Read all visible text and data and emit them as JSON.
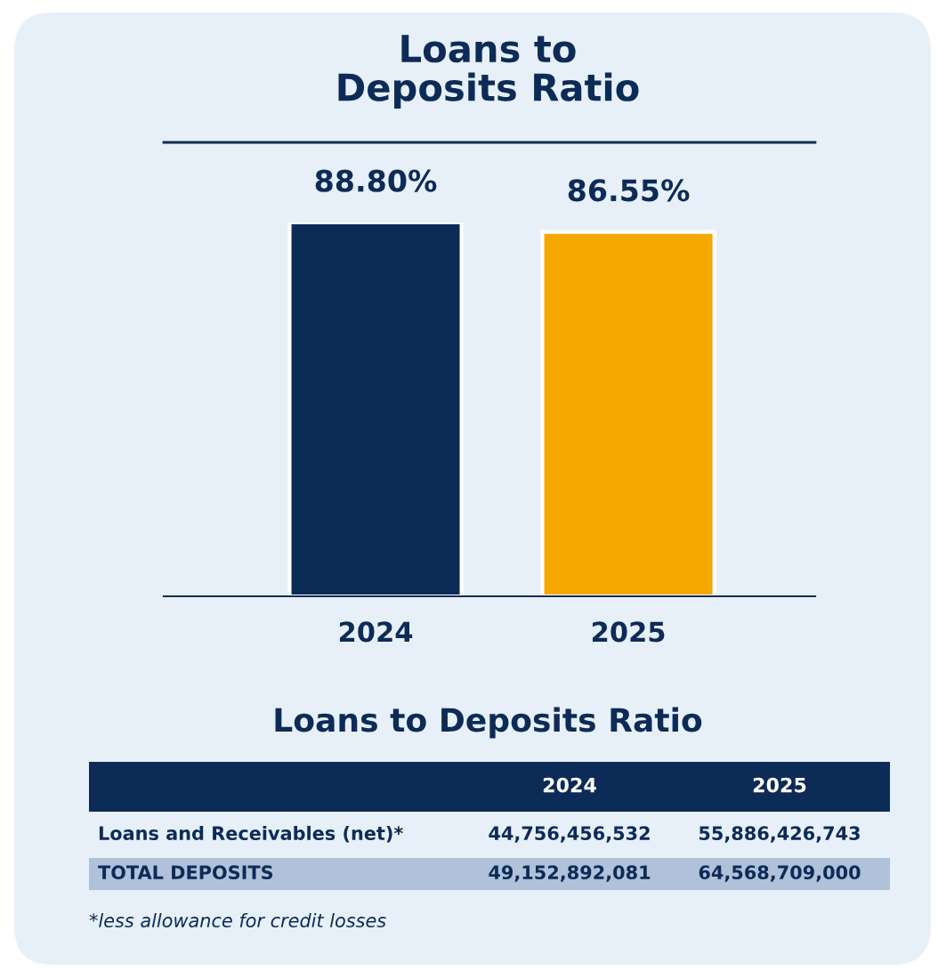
{
  "chart_data": [
    {
      "type": "bar",
      "title": "Loans to\nDeposits Ratio",
      "categories": [
        "2024",
        "2025"
      ],
      "values": [
        88.8,
        86.55
      ],
      "colors": [
        "#0d2b57",
        "#f5a800"
      ],
      "value_labels": [
        "88.80%",
        "86.55%"
      ]
    },
    {
      "type": "other",
      "title": "Loans to Deposits Ratio",
      "categories": [
        "2024",
        "2025"
      ],
      "annotations": [
        "Loans and Receivables (net)*",
        "44,756,456,532",
        "55,886,426,743",
        "TOTAL DEPOSITS",
        "49,152,892,081",
        "64,568,709,000",
        "*less allowance for credit losses"
      ]
    }
  ]
}
